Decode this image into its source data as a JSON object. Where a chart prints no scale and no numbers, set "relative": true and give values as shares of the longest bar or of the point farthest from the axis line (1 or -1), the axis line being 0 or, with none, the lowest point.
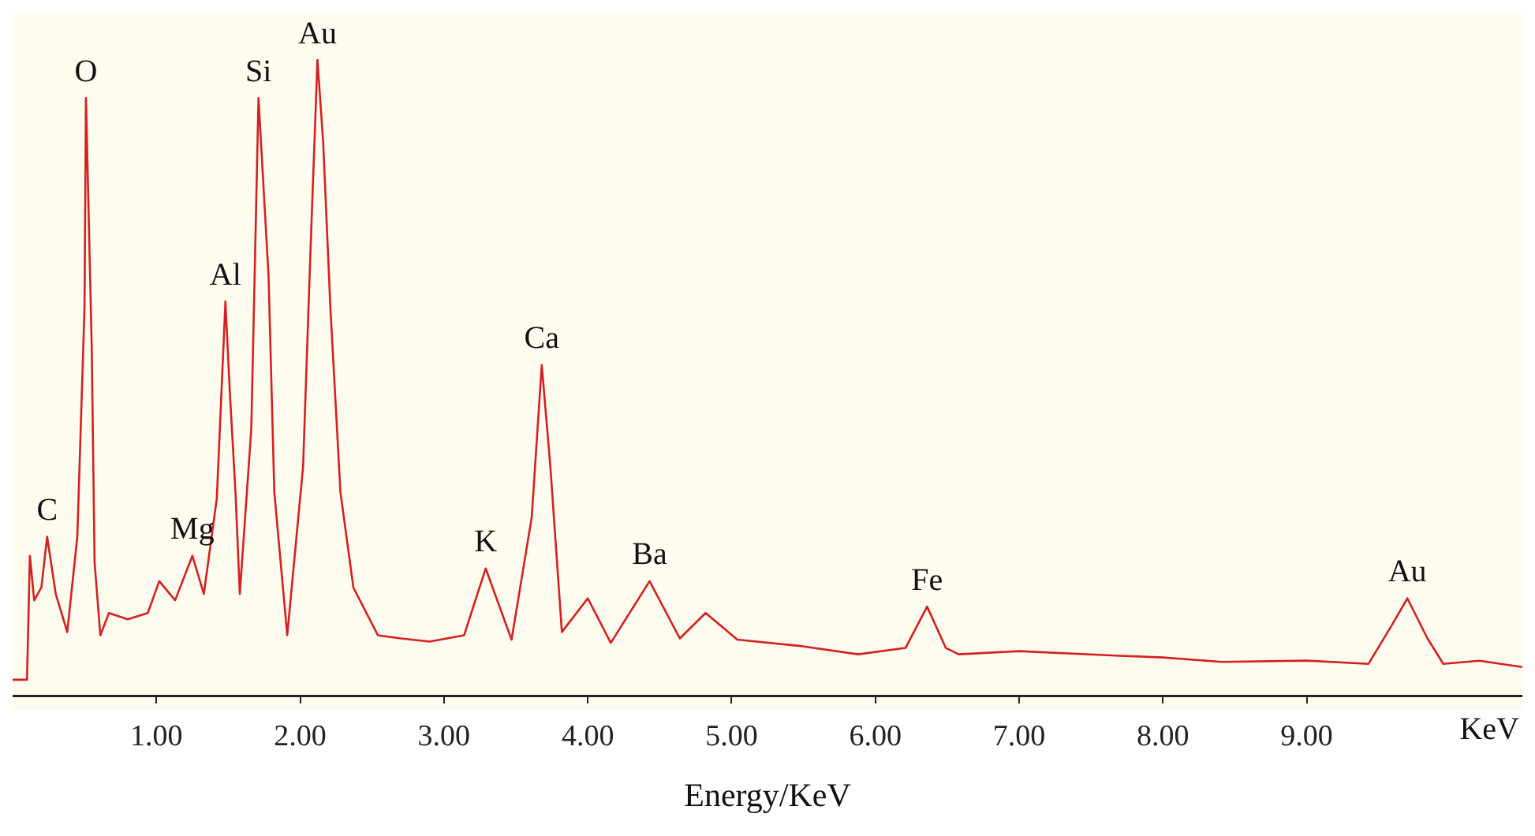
{
  "chart_data": {
    "type": "line",
    "xlabel": "Energy/KeV",
    "relative": true,
    "grid": false,
    "legend": false,
    "marker": "none",
    "line_style": "solid",
    "tick_labels": "x",
    "xlim": [
      0,
      10.5
    ],
    "xticks": [
      {
        "value": 1,
        "label": "1.00"
      },
      {
        "value": 2,
        "label": "2.00"
      },
      {
        "value": 3,
        "label": "3.00"
      },
      {
        "value": 4,
        "label": "4.00"
      },
      {
        "value": 5,
        "label": "5.00"
      },
      {
        "value": 6,
        "label": "6.00"
      },
      {
        "value": 7,
        "label": "7.00"
      },
      {
        "value": 8,
        "label": "8.00"
      },
      {
        "value": 9,
        "label": "9.00"
      }
    ],
    "series": [
      {
        "color": "#d42020",
        "x": [
          0,
          0.1,
          0.12,
          0.15,
          0.2,
          0.24,
          0.3,
          0.38,
          0.45,
          0.5,
          0.51,
          0.55,
          0.57,
          0.61,
          0.67,
          0.8,
          0.94,
          1.02,
          1.13,
          1.25,
          1.33,
          1.42,
          1.48,
          1.51,
          1.55,
          1.58,
          1.66,
          1.71,
          1.78,
          1.82,
          1.91,
          2.02,
          2.07,
          2.12,
          2.16,
          2.21,
          2.28,
          2.37,
          2.54,
          2.7,
          2.9,
          3.14,
          3.29,
          3.47,
          3.61,
          3.68,
          3.74,
          3.82,
          4.0,
          4.16,
          4.43,
          4.64,
          4.82,
          5.04,
          5.48,
          5.88,
          6.21,
          6.36,
          6.49,
          6.58,
          7.0,
          7.67,
          8.0,
          8.41,
          9.0,
          9.43,
          9.59,
          9.7,
          9.84,
          9.95,
          10.2,
          10.5
        ],
        "values": [
          0.025,
          0.025,
          0.22,
          0.15,
          0.17,
          0.25,
          0.16,
          0.1,
          0.25,
          0.61,
          0.94,
          0.55,
          0.21,
          0.095,
          0.13,
          0.12,
          0.13,
          0.18,
          0.15,
          0.22,
          0.16,
          0.31,
          0.62,
          0.48,
          0.32,
          0.16,
          0.42,
          0.94,
          0.66,
          0.32,
          0.095,
          0.36,
          0.69,
          1.0,
          0.87,
          0.61,
          0.32,
          0.17,
          0.095,
          0.09,
          0.085,
          0.095,
          0.2,
          0.088,
          0.28,
          0.52,
          0.36,
          0.1,
          0.153,
          0.083,
          0.18,
          0.09,
          0.13,
          0.088,
          0.078,
          0.065,
          0.075,
          0.14,
          0.075,
          0.065,
          0.07,
          0.063,
          0.06,
          0.053,
          0.055,
          0.05,
          0.11,
          0.153,
          0.09,
          0.05,
          0.055,
          0.045
        ]
      }
    ],
    "annotations": [
      {
        "text": "C",
        "x": 0.24,
        "y": 0.25
      },
      {
        "text": "O",
        "x": 0.51,
        "y": 0.94
      },
      {
        "text": "Mg",
        "x": 1.25,
        "y": 0.22
      },
      {
        "text": "Al",
        "x": 1.48,
        "y": 0.62
      },
      {
        "text": "Si",
        "x": 1.71,
        "y": 0.94
      },
      {
        "text": "Au",
        "x": 2.12,
        "y": 1.0
      },
      {
        "text": "K",
        "x": 3.29,
        "y": 0.2
      },
      {
        "text": "Ca",
        "x": 3.68,
        "y": 0.52
      },
      {
        "text": "Ba",
        "x": 4.43,
        "y": 0.18
      },
      {
        "text": "Fe",
        "x": 6.36,
        "y": 0.14
      },
      {
        "text": "Au",
        "x": 9.7,
        "y": 0.153
      },
      "KeV"
    ]
  }
}
